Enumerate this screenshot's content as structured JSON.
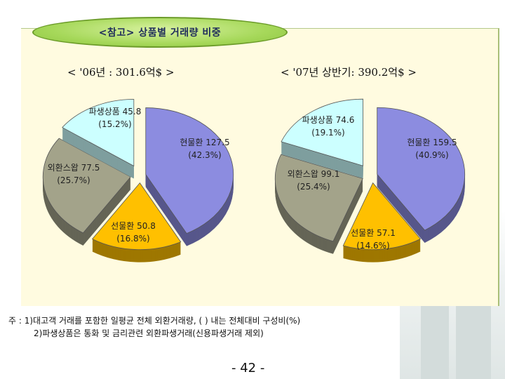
{
  "header": {
    "title": "<참고> 상품별 거래량 비중"
  },
  "chart_data": [
    {
      "type": "pie",
      "subtitle": "< '06년 : 301.6억$ >",
      "slices": [
        {
          "name": "현물환",
          "value": 127.5,
          "percent": 42.3,
          "value_label": "현물환 127.5",
          "pct_label": "(42.3%)",
          "color": "#8c8ce0"
        },
        {
          "name": "선물환",
          "value": 50.8,
          "percent": 16.8,
          "value_label": "선물환 50.8",
          "pct_label": "(16.8%)",
          "color": "#ffc000"
        },
        {
          "name": "외환스왑",
          "value": 77.5,
          "percent": 25.7,
          "value_label": "외환스왑 77.5",
          "pct_label": "(25.7%)",
          "color": "#a3a38a"
        },
        {
          "name": "파생상품",
          "value": 45.8,
          "percent": 15.2,
          "value_label": "파생상품 45.8",
          "pct_label": "(15.2%)",
          "color": "#ccffff"
        }
      ]
    },
    {
      "type": "pie",
      "subtitle": "< '07년 상반기: 390.2억$ >",
      "slices": [
        {
          "name": "현물환",
          "value": 159.5,
          "percent": 40.9,
          "value_label": "현물환 159.5",
          "pct_label": "(40.9%)",
          "color": "#8c8ce0"
        },
        {
          "name": "선물환",
          "value": 57.1,
          "percent": 14.6,
          "value_label": "선물환 57.1",
          "pct_label": "(14.6%)",
          "color": "#ffc000"
        },
        {
          "name": "외환스왑",
          "value": 99.1,
          "percent": 25.4,
          "value_label": "외환스왑 99.1",
          "pct_label": "(25.4%)",
          "color": "#a3a38a"
        },
        {
          "name": "파생상품",
          "value": 74.6,
          "percent": 19.1,
          "value_label": "파생상품 74.6",
          "pct_label": "(19.1%)",
          "color": "#ccffff"
        }
      ]
    }
  ],
  "notes": {
    "line1": "주 : 1)대고객 거래를 포함한 일평균 전체 외환거래량, (  ) 내는 전체대비 구성비(%)",
    "line2": "2)파생상품은 통화 및 금리관련 외환파생거래(신용파생거래 제외)"
  },
  "page_number": "- 42 -"
}
